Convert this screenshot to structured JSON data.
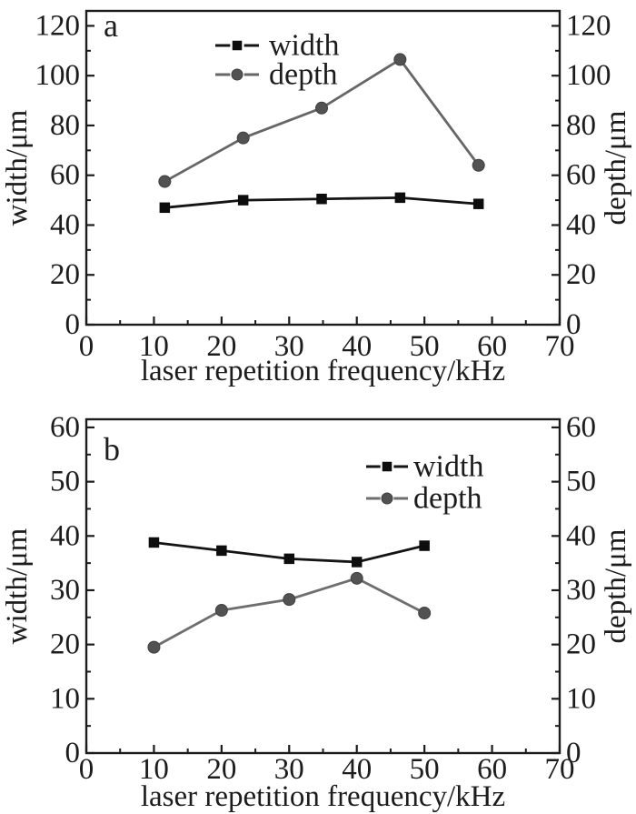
{
  "figure": {
    "background": "#ffffff",
    "text_color": "#1c1c1c",
    "axis_color": "#1c1c1c"
  },
  "chart_data": [
    {
      "type": "line",
      "panel_label": "a",
      "xlabel": "laser repetition frequency/kHz",
      "ylabel_left": "width/μm",
      "ylabel_right": "depth/μm",
      "xlim": [
        0,
        70
      ],
      "ylim": [
        0,
        126
      ],
      "x_major_ticks": [
        0,
        10,
        20,
        30,
        40,
        50,
        60,
        70
      ],
      "x_minor_ticks": [
        5,
        15,
        25,
        35,
        45,
        55,
        65
      ],
      "y_major_ticks": [
        0,
        20,
        40,
        60,
        80,
        100,
        120
      ],
      "y_minor_ticks": [
        10,
        30,
        50,
        70,
        90,
        110
      ],
      "grid": false,
      "legend_position": "top-center",
      "series": [
        {
          "name": "width",
          "marker": "square",
          "line_color": "#141414",
          "marker_color": "#0d0d0d",
          "x": [
            11.6,
            23.2,
            34.8,
            46.4,
            58.0
          ],
          "y": [
            47,
            50,
            50.5,
            51,
            48.5
          ]
        },
        {
          "name": "depth",
          "marker": "circle",
          "line_color": "#666666",
          "marker_color": "#525252",
          "x": [
            11.6,
            23.2,
            34.8,
            46.4,
            58.0
          ],
          "y": [
            57.5,
            75,
            87,
            106.5,
            64
          ]
        }
      ]
    },
    {
      "type": "line",
      "panel_label": "b",
      "xlabel": "laser repetition frequency/kHz",
      "ylabel_left": "width/μm",
      "ylabel_right": "depth/μm",
      "xlim": [
        0,
        70
      ],
      "ylim": [
        0,
        61.5
      ],
      "x_major_ticks": [
        0,
        10,
        20,
        30,
        40,
        50,
        60,
        70
      ],
      "x_minor_ticks": [
        5,
        15,
        25,
        35,
        45,
        55,
        65
      ],
      "y_major_ticks": [
        0,
        10,
        20,
        30,
        40,
        50,
        60
      ],
      "y_minor_ticks": [
        5,
        15,
        25,
        35,
        45,
        55
      ],
      "grid": false,
      "legend_position": "top-right",
      "series": [
        {
          "name": "width",
          "marker": "square",
          "line_color": "#141414",
          "marker_color": "#0d0d0d",
          "x": [
            10,
            20,
            30,
            40,
            50
          ],
          "y": [
            38.8,
            37.3,
            35.8,
            35.2,
            38.2
          ]
        },
        {
          "name": "depth",
          "marker": "circle",
          "line_color": "#6e6e6e",
          "marker_color": "#525252",
          "x": [
            10,
            20,
            30,
            40,
            50
          ],
          "y": [
            19.5,
            26.3,
            28.3,
            32.2,
            25.8
          ]
        }
      ]
    }
  ]
}
